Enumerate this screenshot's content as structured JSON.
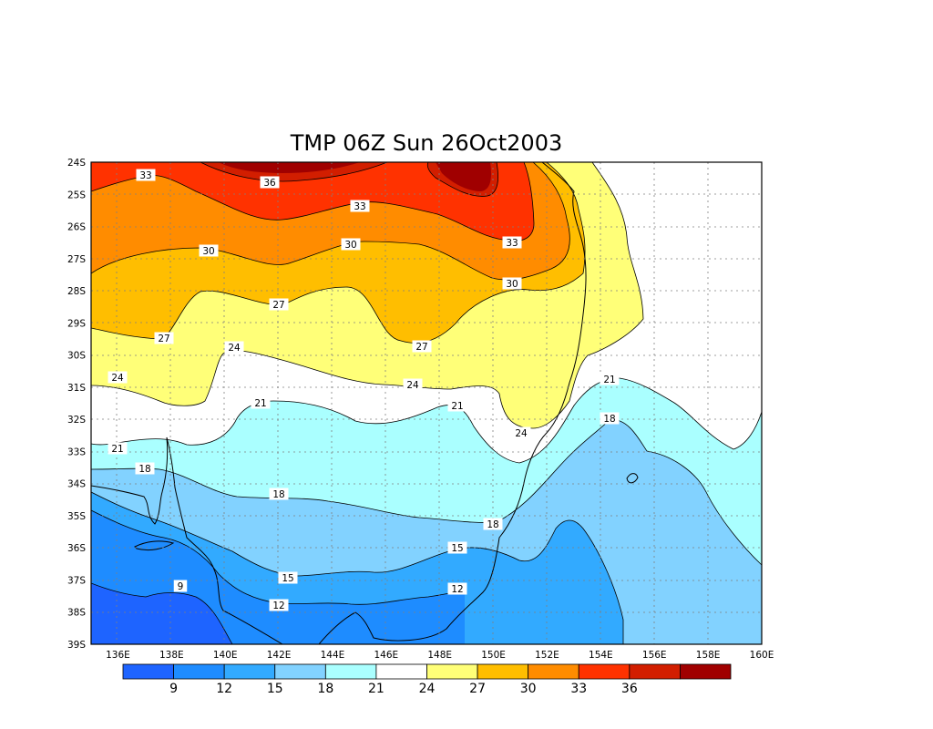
{
  "title": "TMP 06Z Sun 26Oct2003",
  "axes": {
    "lat_ticks": [
      "24S",
      "25S",
      "26S",
      "27S",
      "28S",
      "29S",
      "30S",
      "31S",
      "32S",
      "33S",
      "34S",
      "35S",
      "36S",
      "37S",
      "38S",
      "39S"
    ],
    "lon_ticks": [
      "136E",
      "138E",
      "140E",
      "142E",
      "144E",
      "146E",
      "148E",
      "150E",
      "152E",
      "154E",
      "156E",
      "158E",
      "160E"
    ],
    "lon_range": [
      135,
      160
    ],
    "lat_range": [
      -39,
      -24
    ],
    "grid": "dotted"
  },
  "colorbar": {
    "colors": [
      "#1e64ff",
      "#1e8cff",
      "#32aaff",
      "#82d2ff",
      "#aaffff",
      "#ffffff",
      "#ffff78",
      "#ffbe00",
      "#ff8c00",
      "#ff3200",
      "#d21e00",
      "#a00000"
    ],
    "tick_labels": [
      "9",
      "12",
      "15",
      "18",
      "21",
      "24",
      "27",
      "30",
      "33",
      "36"
    ]
  },
  "contour_labels": [
    {
      "text": "33"
    },
    {
      "text": "36"
    },
    {
      "text": "33"
    },
    {
      "text": "30"
    },
    {
      "text": "33"
    },
    {
      "text": "30"
    },
    {
      "text": "30"
    },
    {
      "text": "27"
    },
    {
      "text": "27"
    },
    {
      "text": "27"
    },
    {
      "text": "24"
    },
    {
      "text": "24"
    },
    {
      "text": "24"
    },
    {
      "text": "24"
    },
    {
      "text": "21"
    },
    {
      "text": "21"
    },
    {
      "text": "21"
    },
    {
      "text": "21"
    },
    {
      "text": "18"
    },
    {
      "text": "18"
    },
    {
      "text": "18"
    },
    {
      "text": "18"
    },
    {
      "text": "15"
    },
    {
      "text": "15"
    },
    {
      "text": "12"
    },
    {
      "text": "12"
    },
    {
      "text": "9"
    }
  ]
}
